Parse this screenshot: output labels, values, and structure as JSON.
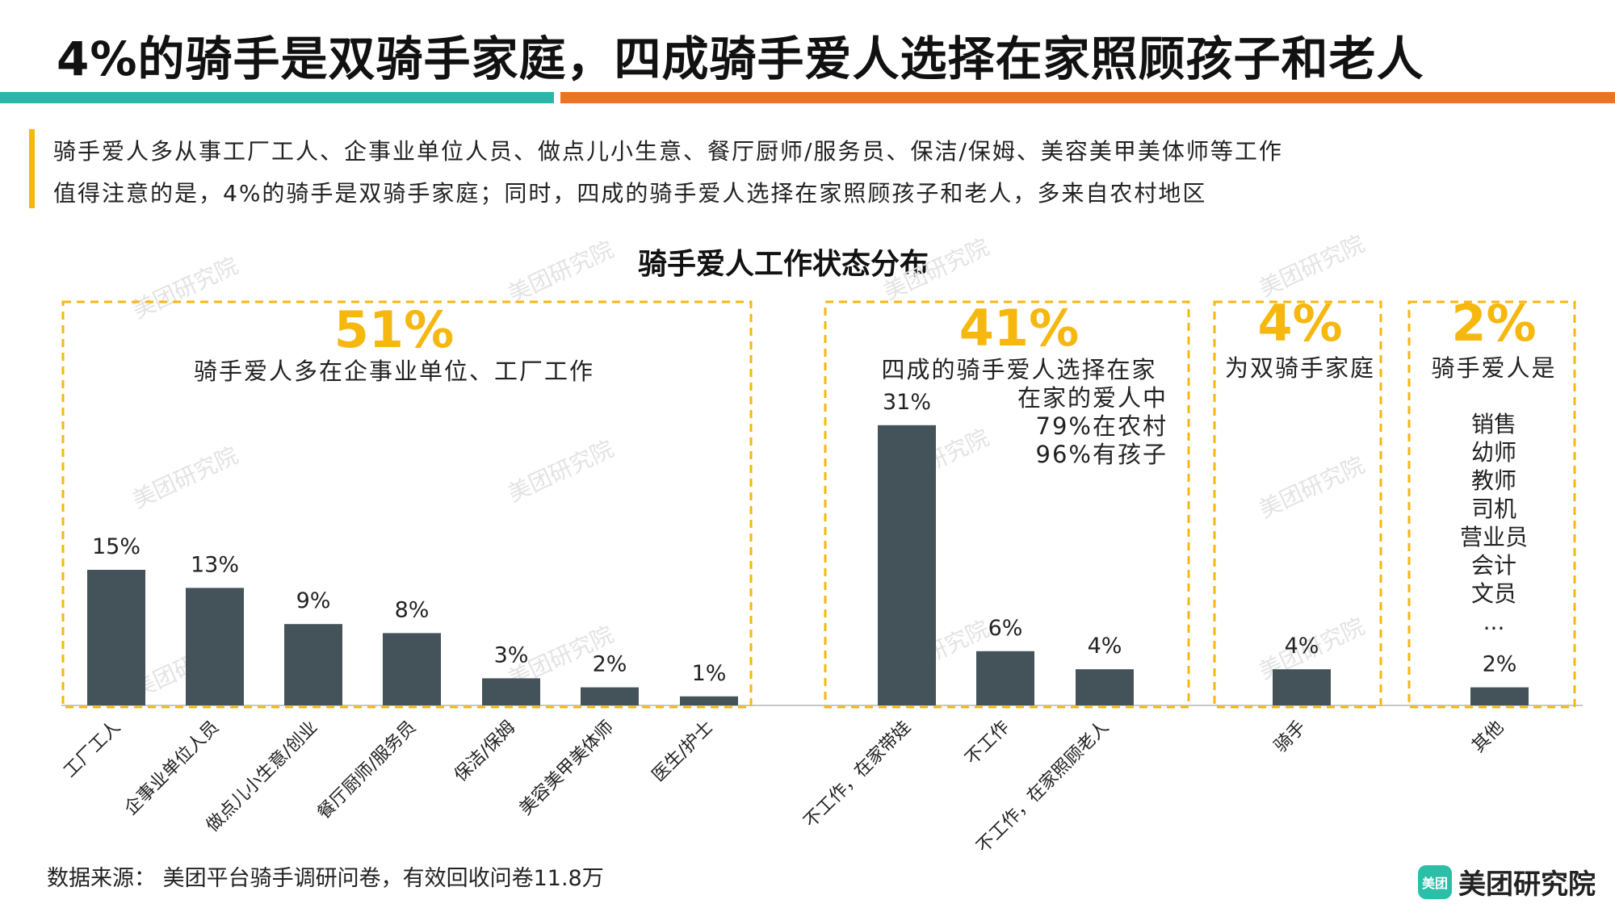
{
  "header": {
    "title": "4%的骑手是双骑手家庭，四成骑手爱人选择在家照顾孩子和老人"
  },
  "summary": {
    "line1": "骑手爱人多从事工厂工人、企事业单位人员、做点儿小生意、餐厅厨师/服务员、保洁/保姆、美容美甲美体师等工作",
    "line2": "值得注意的是，4%的骑手是双骑手家庭；同时，四成的骑手爱人选择在家照顾孩子和老人，多来自农村地区"
  },
  "chart_data": {
    "type": "bar",
    "title": "骑手爱人工作状态分布",
    "categories": [
      "工厂工人",
      "企事业单位人员",
      "做点儿小生意/创业",
      "餐厅厨师/服务员",
      "保洁/保姆",
      "美容美甲美体师",
      "医生/护士",
      "不工作，在家带娃",
      "不工作",
      "不工作，在家照顾老人",
      "骑手",
      "其他"
    ],
    "values": [
      15,
      13,
      9,
      8,
      3,
      2,
      1,
      31,
      6,
      4,
      4,
      2
    ],
    "value_labels": [
      "15%",
      "13%",
      "9%",
      "8%",
      "3%",
      "2%",
      "1%",
      "31%",
      "6%",
      "4%",
      "4%",
      "2%"
    ],
    "unit": "%",
    "ylim": [
      0,
      35
    ],
    "bar_color": "#44535a",
    "groups": [
      {
        "big_value": "51%",
        "caption": [
          "骑手爱人多在企事业单位、工厂工作"
        ]
      },
      {
        "big_value": "41%",
        "caption": [
          "四成的骑手爱人选择在家",
          "在家的爱人中",
          "79%在农村",
          "96%有孩子"
        ]
      },
      {
        "big_value": "4%",
        "caption": [
          "为双骑手家庭"
        ]
      },
      {
        "big_value": "2%",
        "caption": [
          "骑手爱人是"
        ],
        "list": [
          "销售",
          "幼师",
          "教师",
          "司机",
          "营业员",
          "会计",
          "文员",
          "..."
        ]
      }
    ]
  },
  "watermark": "美团研究院",
  "footer": {
    "source": "数据来源： 美团平台骑手调研问卷，有效回收问卷11.8万"
  },
  "logo": {
    "icon_text": "美团",
    "text": "美团研究院"
  },
  "colors": {
    "accent_gold": "#f6b70f",
    "teal": "#2bb7a7",
    "orange": "#ec7323",
    "bar": "#44535a",
    "watermark": "#e3e3e3"
  }
}
